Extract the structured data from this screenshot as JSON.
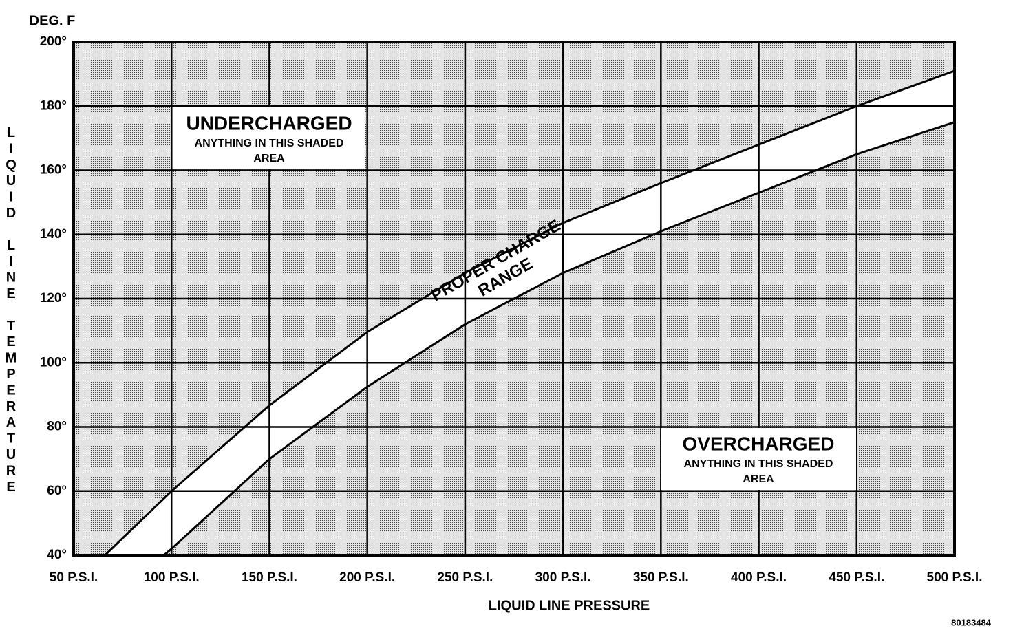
{
  "chart_data": {
    "type": "line",
    "y_unit_label": "DEG. F",
    "ylabel": "LIQUID LINE TEMPERATURE",
    "xlabel": "LIQUID LINE PRESSURE",
    "figure_code": "80183484",
    "xlim": [
      50,
      500
    ],
    "ylim": [
      40,
      200
    ],
    "xticks": [
      {
        "value": 50,
        "label": "50 P.S.I."
      },
      {
        "value": 100,
        "label": "100 P.S.I."
      },
      {
        "value": 150,
        "label": "150 P.S.I."
      },
      {
        "value": 200,
        "label": "200 P.S.I."
      },
      {
        "value": 250,
        "label": "250 P.S.I."
      },
      {
        "value": 300,
        "label": "300 P.S.I."
      },
      {
        "value": 350,
        "label": "350 P.S.I."
      },
      {
        "value": 400,
        "label": "400 P.S.I."
      },
      {
        "value": 450,
        "label": "450 P.S.I."
      },
      {
        "value": 500,
        "label": "500 P.S.I."
      }
    ],
    "yticks": [
      {
        "value": 40,
        "label": "40°"
      },
      {
        "value": 60,
        "label": "60°"
      },
      {
        "value": 80,
        "label": "80°"
      },
      {
        "value": 100,
        "label": "100°"
      },
      {
        "value": 120,
        "label": "120°"
      },
      {
        "value": 140,
        "label": "140°"
      },
      {
        "value": 160,
        "label": "160°"
      },
      {
        "value": 180,
        "label": "180°"
      },
      {
        "value": 200,
        "label": "200°"
      }
    ],
    "grid": true,
    "series": [
      {
        "color": "#000000",
        "x": [
          66,
          100,
          150,
          200,
          250,
          300,
          350,
          400,
          450,
          500
        ],
        "values": [
          40,
          60,
          86.7,
          109.6,
          128,
          143.6,
          156,
          168,
          180,
          191
        ]
      },
      {
        "color": "#000000",
        "x": [
          96,
          100,
          150,
          200,
          250,
          300,
          350,
          400,
          450,
          500
        ],
        "values": [
          40,
          42,
          70,
          92.5,
          112,
          128,
          141,
          153,
          165,
          175
        ]
      }
    ],
    "annotations": [
      {
        "title": "UNDERCHARGED",
        "lines": [
          "ANYTHING IN THIS SHADED",
          "AREA"
        ]
      },
      {
        "title": "OVERCHARGED",
        "lines": [
          "ANYTHING IN THIS SHADED",
          "AREA"
        ]
      },
      {
        "lines": [
          "PROPER CHARGE",
          "RANGE"
        ]
      }
    ]
  }
}
